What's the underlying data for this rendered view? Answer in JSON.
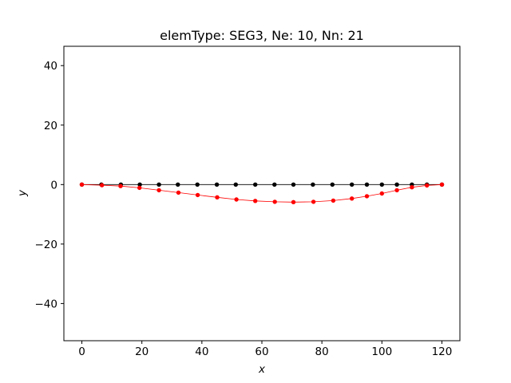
{
  "chart_data": {
    "type": "line",
    "title": "elemType: SEG3, Ne: 10, Nn: 21",
    "xlabel": "x",
    "ylabel": "y",
    "xlim": [
      -6,
      126
    ],
    "ylim": [
      -52.5,
      46.5
    ],
    "xticks": [
      0,
      20,
      40,
      60,
      80,
      100,
      120
    ],
    "yticks": [
      -40,
      -20,
      0,
      20,
      40
    ],
    "xtick_labels": [
      "0",
      "20",
      "40",
      "60",
      "80",
      "100",
      "120"
    ],
    "ytick_labels": [
      "−40",
      "−20",
      "0",
      "20",
      "40"
    ],
    "grid": false,
    "series": [
      {
        "color": "#000000",
        "x": [
          0,
          6.5,
          13,
          19.3,
          25.7,
          32,
          38.5,
          45,
          51.3,
          57.8,
          64.2,
          70.5,
          77,
          83.5,
          90,
          95,
          100,
          105,
          110,
          115,
          120
        ],
        "y": [
          0,
          0,
          0,
          0,
          0,
          0,
          0,
          0,
          0,
          0,
          0,
          0,
          0,
          0,
          0,
          0,
          0,
          0,
          0,
          0,
          0
        ]
      },
      {
        "color": "#ff0000",
        "x": [
          0,
          6.7,
          12.9,
          19.2,
          25.7,
          32.2,
          38.6,
          45.1,
          51.5,
          57.8,
          64.3,
          70.5,
          77.2,
          83.8,
          90,
          95,
          100,
          105,
          110,
          115,
          120
        ],
        "y": [
          0,
          -0.2,
          -0.5,
          -1.1,
          -1.9,
          -2.7,
          -3.5,
          -4.3,
          -5.0,
          -5.5,
          -5.8,
          -5.9,
          -5.8,
          -5.4,
          -4.7,
          -3.9,
          -3.0,
          -1.9,
          -0.9,
          -0.3,
          0
        ]
      }
    ]
  }
}
